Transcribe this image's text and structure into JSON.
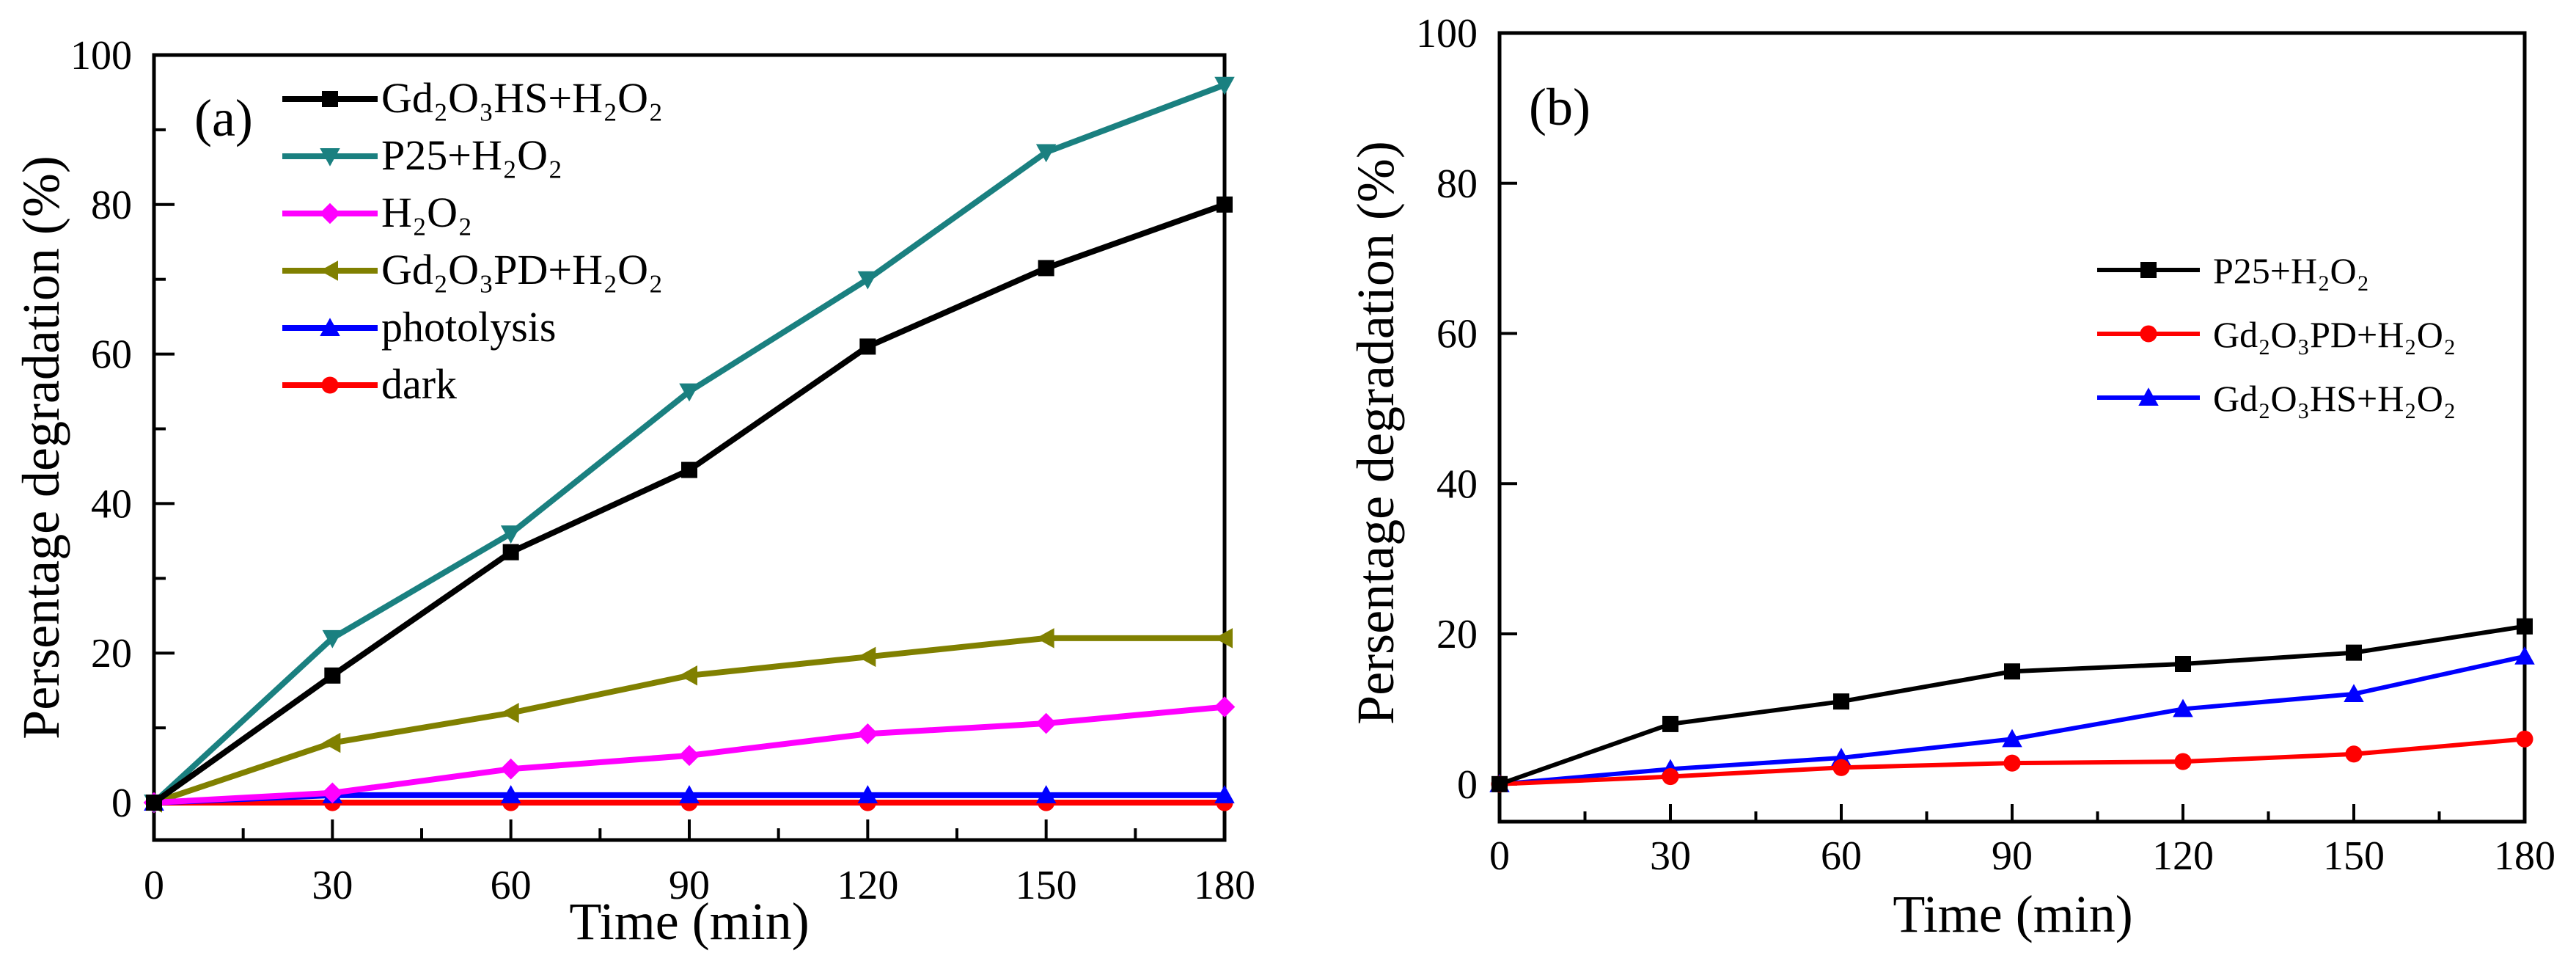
{
  "chart_data": [
    {
      "type": "line",
      "panel_label": "(a)",
      "xlabel": "Time (min)",
      "ylabel": "Persentage degradation (%)",
      "x": [
        0,
        30,
        60,
        90,
        120,
        150,
        180
      ],
      "xlim": [
        0,
        180
      ],
      "ylim": [
        -5,
        100
      ],
      "xticks": [
        0,
        30,
        60,
        90,
        120,
        150,
        180
      ],
      "yticks": [
        0,
        20,
        40,
        60,
        80,
        100
      ],
      "grid": false,
      "legend_position": "top-left",
      "series": [
        {
          "name": "Gd₂O₃HS+H₂O₂",
          "marker": "square",
          "color": "#000000",
          "values": [
            0,
            17,
            33.5,
            44.5,
            61,
            71.5,
            80
          ]
        },
        {
          "name": "P25+H₂O₂",
          "marker": "triangle-down",
          "color": "#1a8080",
          "values": [
            0,
            22,
            36,
            55,
            70,
            87,
            96
          ]
        },
        {
          "name": "H₂O₂",
          "marker": "diamond",
          "color": "#ff00ff",
          "values": [
            0,
            1.3,
            4.5,
            6.3,
            9.2,
            10.6,
            12.8
          ]
        },
        {
          "name": "Gd₂O₃PD+H₂O₂",
          "marker": "triangle-left",
          "color": "#808000",
          "values": [
            0,
            8,
            12,
            17,
            19.5,
            22,
            22
          ]
        },
        {
          "name": "photolysis",
          "marker": "triangle-up",
          "color": "#0000ff",
          "values": [
            0,
            1,
            1,
            1,
            1,
            1,
            1
          ]
        },
        {
          "name": "dark",
          "marker": "circle",
          "color": "#ff0000",
          "values": [
            0,
            0,
            0,
            0,
            0,
            0,
            0
          ]
        }
      ]
    },
    {
      "type": "line",
      "panel_label": "(b)",
      "xlabel": "Time (min)",
      "ylabel": "Persentage degradation (%)",
      "x": [
        0,
        30,
        60,
        90,
        120,
        150,
        180
      ],
      "xlim": [
        0,
        180
      ],
      "ylim": [
        -5,
        100
      ],
      "xticks": [
        0,
        30,
        60,
        90,
        120,
        150,
        180
      ],
      "yticks": [
        0,
        20,
        40,
        60,
        80,
        100
      ],
      "grid": false,
      "legend_position": "center-right",
      "series": [
        {
          "name": "P25+H₂O₂",
          "marker": "square",
          "color": "#000000",
          "values": [
            0,
            8,
            11,
            15,
            16,
            17.5,
            21
          ]
        },
        {
          "name": "Gd₂O₃PD+H₂O₂",
          "marker": "circle",
          "color": "#ff0000",
          "values": [
            0,
            1,
            2.2,
            2.8,
            3,
            4,
            6
          ]
        },
        {
          "name": "Gd₂O₃HS+H₂O₂",
          "marker": "triangle-up",
          "color": "#0000ff",
          "values": [
            0,
            2,
            3.5,
            6,
            10,
            12,
            17
          ]
        }
      ]
    }
  ]
}
